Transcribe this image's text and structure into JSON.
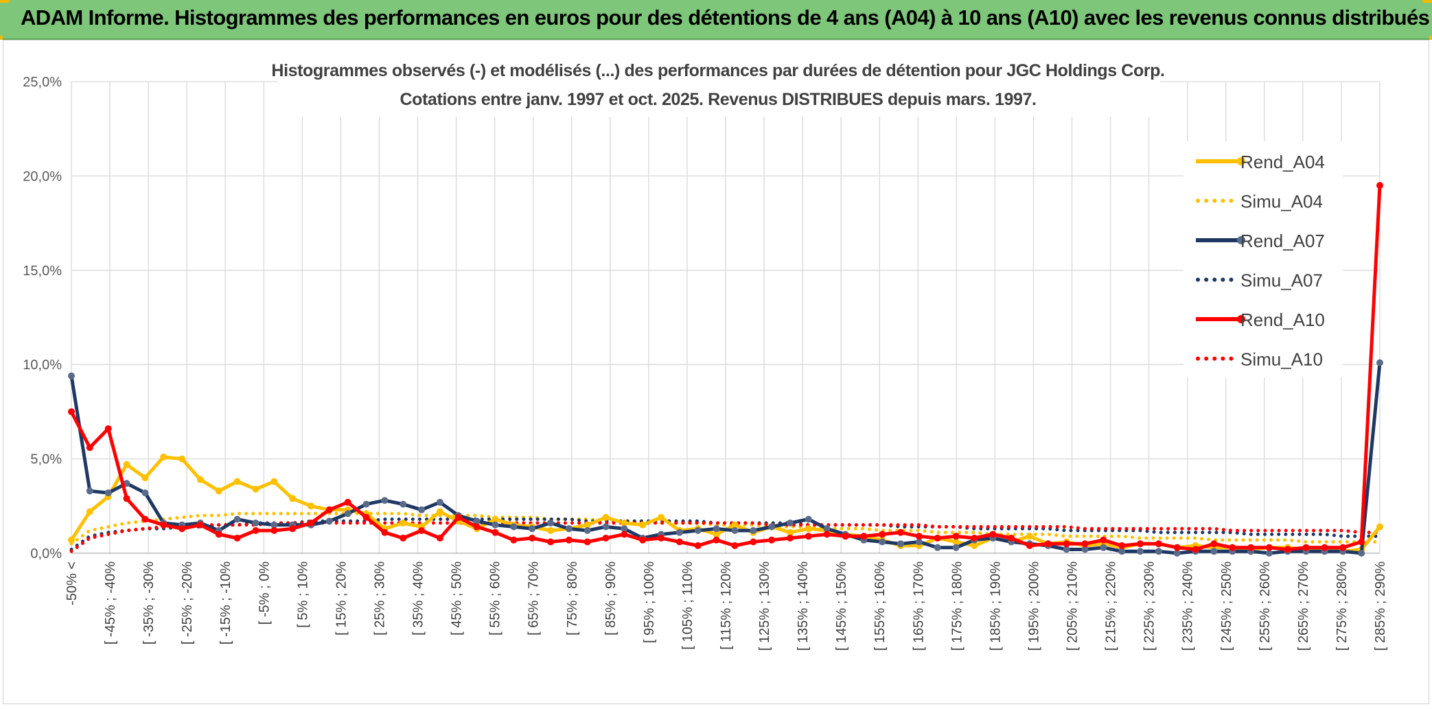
{
  "header": {
    "title": "ADAM Informe. Histogrammes des performances en euros pour des détentions de 4 ans (A04) à 10 ans (A10) avec les revenus connus distribués"
  },
  "chart_data": {
    "type": "line",
    "title": "Histogrammes observés (-) et modélisés (...) des performances par durées de détention pour JGC Holdings Corp.",
    "subtitle": "Cotations entre janv. 1997 et oct. 2025. Revenus DISTRIBUES depuis mars. 1997.",
    "xlabel": "",
    "ylabel": "",
    "ylim": [
      0,
      25
    ],
    "yticks": [
      "0,0%",
      "5,0%",
      "10,0%",
      "15,0%",
      "20,0%",
      "25,0%"
    ],
    "grid": true,
    "legend_position": "right",
    "category_labels": [
      "-50% <",
      "[ -45% ; -40%",
      "[ -35% ; -30%",
      "[ -25% ; -20%",
      "[ -15% ; -10%",
      "[ -5% ; 0%",
      "[ 5% ; 10%",
      "[ 15% ; 20%",
      "[ 25% ; 30%",
      "[ 35% ; 40%",
      "[ 45% ; 50%",
      "[ 55% ; 60%",
      "[ 65% ; 70%",
      "[ 75% ; 80%",
      "[ 85% ; 90%",
      "[ 95% ; 100%",
      "[ 105% ; 110%",
      "[ 115% ; 120%",
      "[ 125% ; 130%",
      "[ 135% ; 140%",
      "[ 145% ; 150%",
      "[ 155% ; 160%",
      "[ 165% ; 170%",
      "[ 175% ; 180%",
      "[ 185% ; 190%",
      "[ 195% ; 200%",
      "[ 205% ; 210%",
      "[ 215% ; 220%",
      "[ 225% ; 230%",
      "[ 235% ; 240%",
      "[ 245% ; 250%",
      "[ 255% ; 260%",
      "[ 265% ; 270%",
      "[ 275% ; 280%",
      "[ 285% ; 290%"
    ],
    "series": [
      {
        "name": "Rend_A04",
        "color": "#ffc000",
        "style": "solid",
        "values": [
          0.7,
          2.2,
          3.0,
          4.7,
          4.0,
          5.1,
          5.0,
          3.9,
          3.3,
          3.8,
          3.4,
          3.8,
          2.9,
          2.5,
          2.3,
          2.3,
          2.1,
          1.3,
          1.6,
          1.4,
          2.2,
          1.7,
          1.3,
          1.8,
          1.5,
          1.4,
          1.2,
          1.3,
          1.5,
          1.9,
          1.6,
          1.5,
          1.9,
          1.2,
          1.3,
          1.0,
          1.5,
          1.1,
          1.4,
          1.1,
          1.3,
          1.2,
          1.0,
          0.9,
          0.7,
          0.4,
          0.4,
          0.8,
          0.6,
          0.4,
          0.8,
          0.6,
          0.9,
          0.5,
          0.6,
          0.4,
          0.5,
          0.3,
          0.5,
          0.5,
          0.3,
          0.4,
          0.3,
          0.3,
          0.2,
          0.3,
          0.3,
          0.2,
          0.2,
          0.1,
          0.2,
          1.4
        ]
      },
      {
        "name": "Simu_A04",
        "color": "#ffc000",
        "style": "dotted",
        "values": [
          0.5,
          1.2,
          1.4,
          1.6,
          1.7,
          1.8,
          1.9,
          2.0,
          2.0,
          2.1,
          2.1,
          2.1,
          2.1,
          2.1,
          2.1,
          2.1,
          2.1,
          2.1,
          2.1,
          2.0,
          2.0,
          2.0,
          2.0,
          1.9,
          1.9,
          1.9,
          1.8,
          1.8,
          1.8,
          1.7,
          1.7,
          1.7,
          1.6,
          1.6,
          1.6,
          1.5,
          1.5,
          1.5,
          1.4,
          1.4,
          1.4,
          1.3,
          1.3,
          1.3,
          1.2,
          1.2,
          1.2,
          1.1,
          1.1,
          1.1,
          1.0,
          1.0,
          1.0,
          1.0,
          0.9,
          0.9,
          0.9,
          0.9,
          0.8,
          0.8,
          0.8,
          0.8,
          0.7,
          0.7,
          0.7,
          0.7,
          0.7,
          0.6,
          0.6,
          0.6,
          0.6,
          0.6
        ]
      },
      {
        "name": "Rend_A07",
        "color": "#1f3864",
        "style": "solid",
        "values": [
          9.4,
          3.3,
          3.2,
          3.7,
          3.2,
          1.6,
          1.5,
          1.6,
          1.2,
          1.8,
          1.6,
          1.5,
          1.5,
          1.5,
          1.7,
          2.1,
          2.6,
          2.8,
          2.6,
          2.3,
          2.7,
          2.0,
          1.7,
          1.5,
          1.4,
          1.3,
          1.6,
          1.3,
          1.2,
          1.4,
          1.3,
          0.8,
          1.0,
          1.1,
          1.2,
          1.3,
          1.2,
          1.2,
          1.4,
          1.6,
          1.8,
          1.3,
          1.0,
          0.7,
          0.6,
          0.5,
          0.6,
          0.3,
          0.3,
          0.7,
          0.8,
          0.6,
          0.5,
          0.4,
          0.2,
          0.2,
          0.3,
          0.1,
          0.1,
          0.1,
          0.0,
          0.1,
          0.1,
          0.1,
          0.1,
          0.0,
          0.1,
          0.1,
          0.1,
          0.1,
          0.0,
          10.1
        ]
      },
      {
        "name": "Simu_A07",
        "color": "#1f3864",
        "style": "dotted",
        "values": [
          0.2,
          0.9,
          1.1,
          1.2,
          1.3,
          1.3,
          1.4,
          1.4,
          1.5,
          1.5,
          1.6,
          1.6,
          1.6,
          1.7,
          1.7,
          1.7,
          1.7,
          1.8,
          1.8,
          1.8,
          1.8,
          1.8,
          1.8,
          1.8,
          1.8,
          1.8,
          1.8,
          1.8,
          1.7,
          1.7,
          1.7,
          1.7,
          1.7,
          1.7,
          1.7,
          1.6,
          1.6,
          1.6,
          1.6,
          1.6,
          1.5,
          1.5,
          1.5,
          1.5,
          1.5,
          1.4,
          1.4,
          1.4,
          1.4,
          1.3,
          1.3,
          1.3,
          1.3,
          1.3,
          1.2,
          1.2,
          1.2,
          1.2,
          1.2,
          1.1,
          1.1,
          1.1,
          1.1,
          1.1,
          1.0,
          1.0,
          1.0,
          1.0,
          1.0,
          0.9,
          0.9,
          0.9
        ]
      },
      {
        "name": "Rend_A10",
        "color": "#ff0000",
        "style": "solid",
        "values": [
          7.5,
          5.6,
          6.6,
          2.9,
          1.8,
          1.5,
          1.3,
          1.5,
          1.0,
          0.8,
          1.2,
          1.2,
          1.3,
          1.6,
          2.3,
          2.7,
          1.9,
          1.1,
          0.8,
          1.2,
          0.8,
          1.9,
          1.4,
          1.1,
          0.7,
          0.8,
          0.6,
          0.7,
          0.6,
          0.8,
          1.0,
          0.7,
          0.8,
          0.6,
          0.4,
          0.7,
          0.4,
          0.6,
          0.7,
          0.8,
          0.9,
          1.0,
          0.9,
          0.9,
          1.0,
          1.1,
          0.9,
          0.8,
          0.9,
          0.8,
          1.0,
          0.8,
          0.4,
          0.5,
          0.5,
          0.5,
          0.7,
          0.4,
          0.5,
          0.5,
          0.3,
          0.2,
          0.5,
          0.3,
          0.3,
          0.3,
          0.2,
          0.3,
          0.3,
          0.3,
          0.6,
          19.5
        ]
      },
      {
        "name": "Simu_A10",
        "color": "#ff0000",
        "style": "dotted",
        "values": [
          0.1,
          0.8,
          1.0,
          1.2,
          1.3,
          1.4,
          1.4,
          1.5,
          1.5,
          1.5,
          1.5,
          1.6,
          1.6,
          1.6,
          1.6,
          1.6,
          1.6,
          1.6,
          1.6,
          1.6,
          1.6,
          1.6,
          1.6,
          1.6,
          1.6,
          1.6,
          1.6,
          1.6,
          1.6,
          1.6,
          1.6,
          1.6,
          1.6,
          1.6,
          1.6,
          1.6,
          1.6,
          1.6,
          1.5,
          1.5,
          1.5,
          1.5,
          1.5,
          1.5,
          1.5,
          1.5,
          1.5,
          1.4,
          1.4,
          1.4,
          1.4,
          1.4,
          1.4,
          1.4,
          1.4,
          1.3,
          1.3,
          1.3,
          1.3,
          1.3,
          1.3,
          1.3,
          1.3,
          1.2,
          1.2,
          1.2,
          1.2,
          1.2,
          1.2,
          1.2,
          1.1,
          1.1
        ]
      }
    ]
  }
}
